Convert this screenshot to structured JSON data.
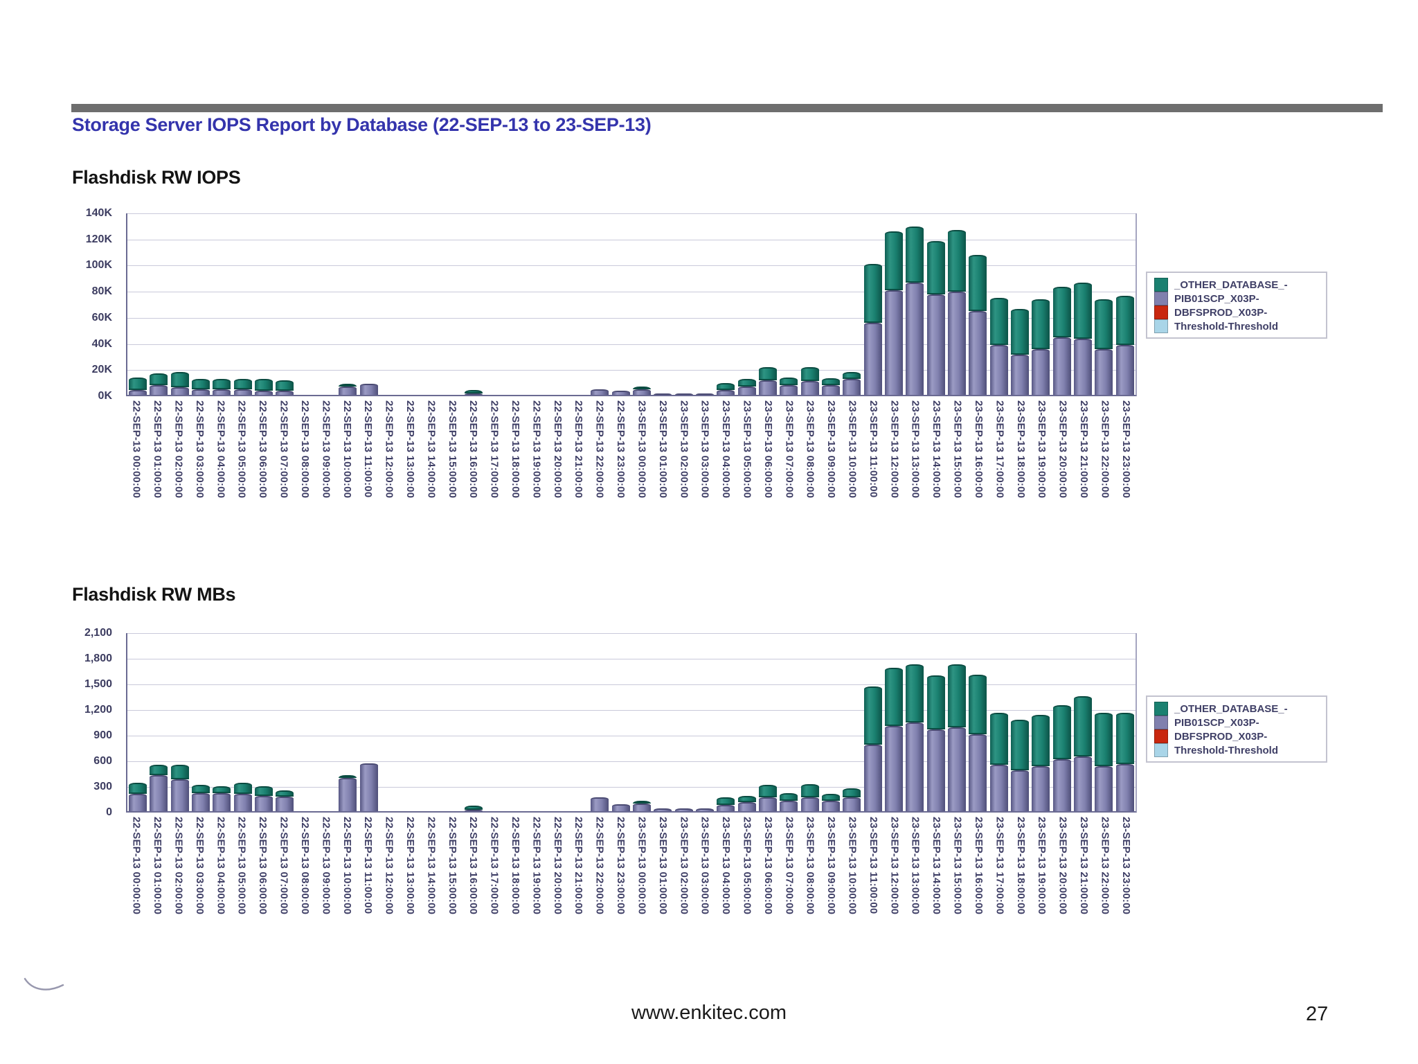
{
  "page": {
    "title": "Storage Server IOPS Report by Database (22-SEP-13 to 23-SEP-13)",
    "footer_url": "www.enkitec.com",
    "page_number": "27"
  },
  "legend": {
    "entries": [
      {
        "label": "_OTHER_DATABASE_-",
        "color": "#1a8070"
      },
      {
        "label": "PIB01SCP_X03P-",
        "color": "#8080ae"
      },
      {
        "label": "DBFSPROD_X03P-",
        "color": "#c9270f"
      },
      {
        "label": "Threshold-Threshold",
        "color": "#a9d5e8"
      }
    ]
  },
  "categories": [
    "22-SEP-13 00:00:00",
    "22-SEP-13 01:00:00",
    "22-SEP-13 02:00:00",
    "22-SEP-13 03:00:00",
    "22-SEP-13 04:00:00",
    "22-SEP-13 05:00:00",
    "22-SEP-13 06:00:00",
    "22-SEP-13 07:00:00",
    "22-SEP-13 08:00:00",
    "22-SEP-13 09:00:00",
    "22-SEP-13 10:00:00",
    "22-SEP-13 11:00:00",
    "22-SEP-13 12:00:00",
    "22-SEP-13 13:00:00",
    "22-SEP-13 14:00:00",
    "22-SEP-13 15:00:00",
    "22-SEP-13 16:00:00",
    "22-SEP-13 17:00:00",
    "22-SEP-13 18:00:00",
    "22-SEP-13 19:00:00",
    "22-SEP-13 20:00:00",
    "22-SEP-13 21:00:00",
    "22-SEP-13 22:00:00",
    "22-SEP-13 23:00:00",
    "23-SEP-13 00:00:00",
    "23-SEP-13 01:00:00",
    "23-SEP-13 02:00:00",
    "23-SEP-13 03:00:00",
    "23-SEP-13 04:00:00",
    "23-SEP-13 05:00:00",
    "23-SEP-13 06:00:00",
    "23-SEP-13 07:00:00",
    "23-SEP-13 08:00:00",
    "23-SEP-13 09:00:00",
    "23-SEP-13 10:00:00",
    "23-SEP-13 11:00:00",
    "23-SEP-13 12:00:00",
    "23-SEP-13 13:00:00",
    "23-SEP-13 14:00:00",
    "23-SEP-13 15:00:00",
    "23-SEP-13 16:00:00",
    "23-SEP-13 17:00:00",
    "23-SEP-13 18:00:00",
    "23-SEP-13 19:00:00",
    "23-SEP-13 20:00:00",
    "23-SEP-13 21:00:00",
    "23-SEP-13 22:00:00",
    "23-SEP-13 23:00:00"
  ],
  "chart_data": [
    {
      "type": "bar",
      "stacked": true,
      "title": "Flashdisk RW IOPS",
      "units": "K IOPS",
      "y_max": 140,
      "y_ticks": [
        "140K",
        "120K",
        "100K",
        "80K",
        "60K",
        "40K",
        "20K",
        "0K"
      ],
      "grid": true,
      "legend_position": "right",
      "series": [
        {
          "name": "PIB01SCP_X03P-",
          "color": "#8080ae",
          "values": [
            3.5,
            7.5,
            6,
            4,
            4,
            4,
            3,
            3,
            0,
            0,
            6.5,
            8.5,
            0,
            0,
            0,
            0,
            0.5,
            0,
            0,
            0,
            0,
            0,
            4.5,
            3,
            4,
            0.5,
            0.5,
            0.5,
            3.5,
            6.5,
            11,
            7.5,
            10.5,
            7.5,
            12,
            55,
            80,
            86,
            77,
            79,
            64,
            38,
            31,
            35,
            44,
            43,
            35,
            38
          ]
        },
        {
          "name": "_OTHER_DATABASE_-",
          "color": "#1a8070",
          "values": [
            10,
            9,
            11.5,
            8,
            8,
            8,
            9,
            8,
            0,
            0,
            1,
            0,
            0,
            0,
            0,
            0,
            2.5,
            0,
            0,
            0,
            0,
            0,
            0,
            0,
            1,
            0,
            0,
            0,
            5.5,
            5.5,
            10,
            6,
            10.5,
            5.5,
            5.5,
            45,
            45,
            43,
            41,
            47,
            43,
            36,
            35,
            38,
            39,
            43,
            38,
            38
          ]
        }
      ]
    },
    {
      "type": "bar",
      "stacked": true,
      "title": "Flashdisk RW MBs",
      "units": "MB",
      "y_max": 2100,
      "y_ticks": [
        "2,100",
        "1,800",
        "1,500",
        "1,200",
        "900",
        "600",
        "300",
        "0"
      ],
      "grid": true,
      "legend_position": "right",
      "series": [
        {
          "name": "PIB01SCP_X03P-",
          "color": "#8080ae",
          "values": [
            200,
            425,
            375,
            210,
            210,
            200,
            175,
            170,
            0,
            0,
            390,
            560,
            0,
            0,
            0,
            0,
            10,
            0,
            0,
            0,
            0,
            0,
            160,
            80,
            90,
            30,
            30,
            30,
            75,
            105,
            160,
            120,
            160,
            120,
            160,
            780,
            1000,
            1040,
            960,
            980,
            900,
            540,
            480,
            530,
            610,
            640,
            530,
            550
          ]
        },
        {
          "name": "_OTHER_DATABASE_-",
          "color": "#1a8070",
          "values": [
            130,
            120,
            170,
            100,
            80,
            130,
            115,
            70,
            0,
            0,
            20,
            0,
            0,
            0,
            0,
            0,
            45,
            0,
            0,
            0,
            0,
            0,
            0,
            0,
            30,
            0,
            0,
            0,
            85,
            70,
            150,
            90,
            160,
            80,
            110,
            680,
            680,
            680,
            630,
            740,
            700,
            610,
            590,
            600,
            630,
            710,
            620,
            600
          ]
        }
      ]
    }
  ]
}
